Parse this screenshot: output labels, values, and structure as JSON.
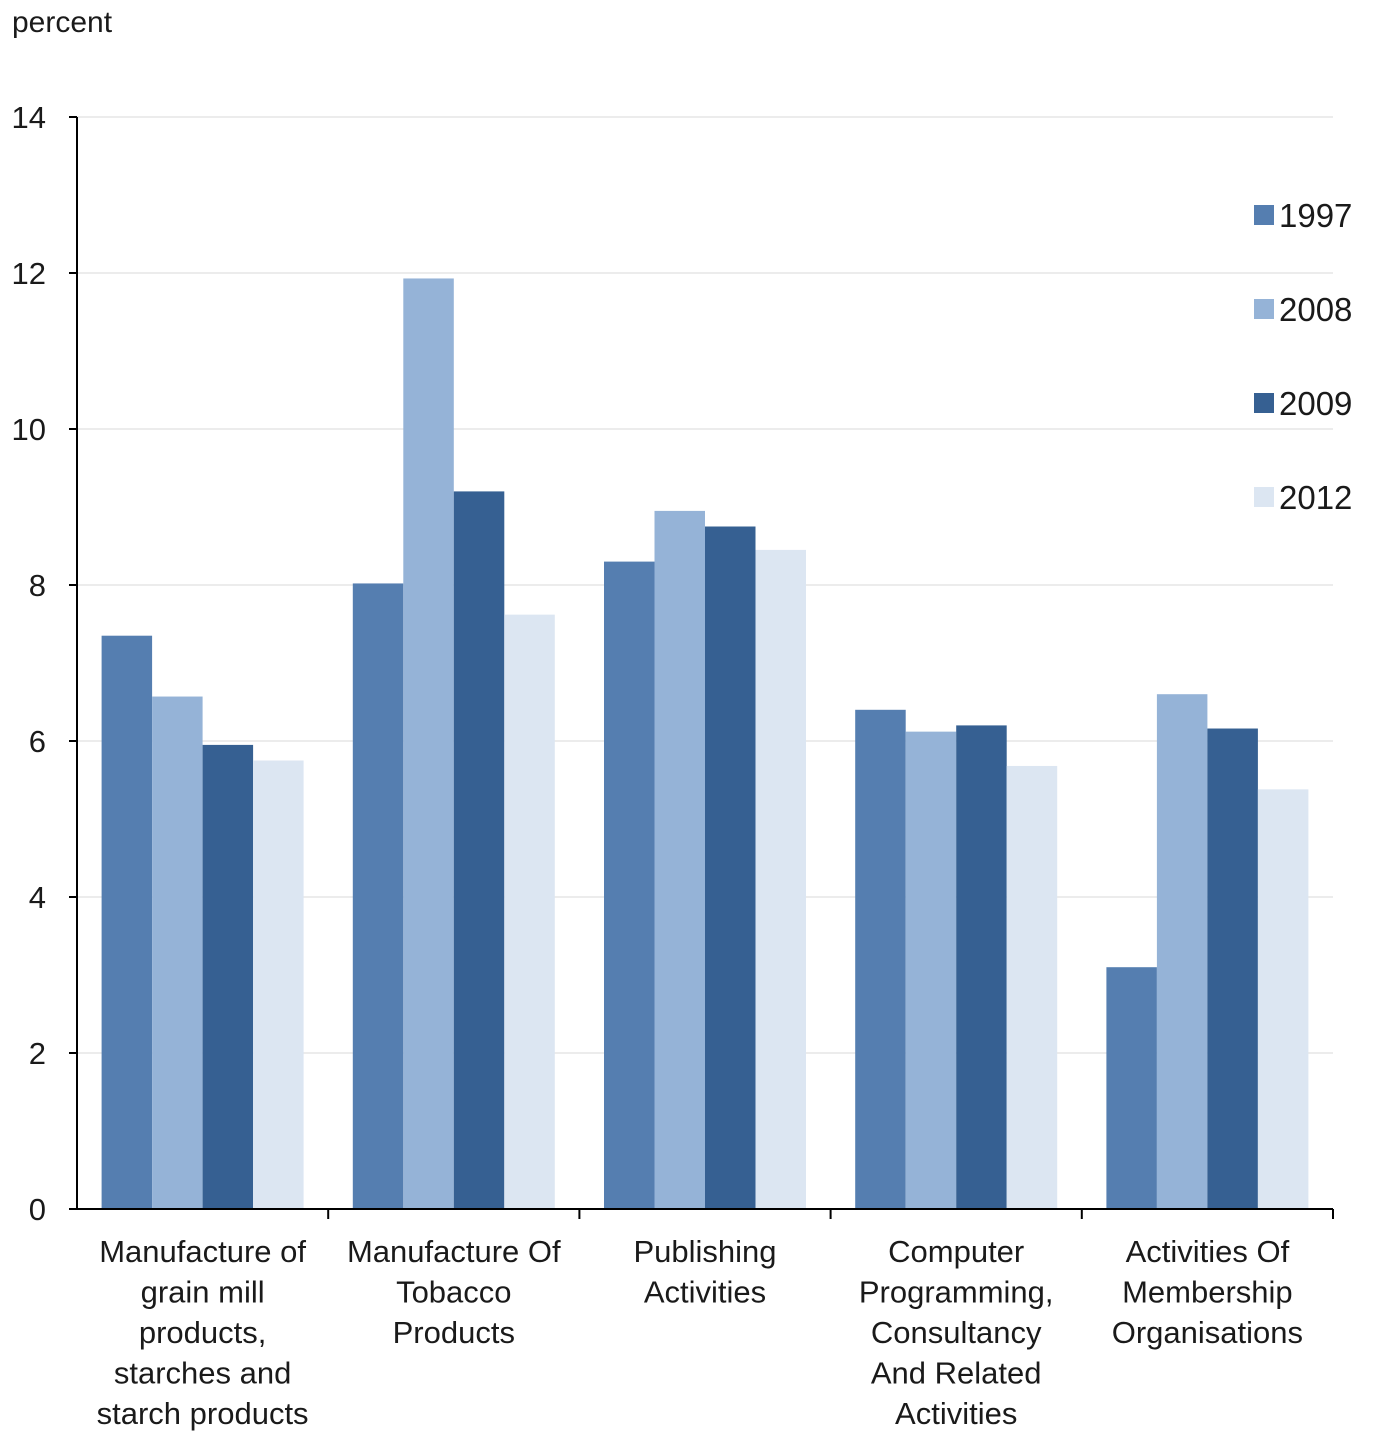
{
  "chart_data": {
    "type": "bar",
    "title": "",
    "xlabel": "",
    "ylabel": "percent",
    "ylim": [
      0,
      14
    ],
    "yticks": [
      "0",
      "2",
      "4",
      "6",
      "8",
      "10",
      "12",
      "14"
    ],
    "grid": true,
    "legend_position": "right",
    "categories": [
      [
        "Manufacture of",
        "grain mill",
        "products,",
        "starches and",
        "starch products"
      ],
      [
        "Manufacture Of",
        "Tobacco",
        "Products"
      ],
      [
        "Publishing",
        "Activities"
      ],
      [
        "Computer",
        "Programming,",
        "Consultancy",
        "And Related",
        "Activities"
      ],
      [
        "Activities Of",
        "Membership",
        "Organisations"
      ]
    ],
    "series": [
      {
        "name": "1997",
        "color": "#557EB0",
        "values": [
          7.35,
          8.02,
          8.3,
          6.4,
          3.1
        ]
      },
      {
        "name": "2008",
        "color": "#95B3D7",
        "values": [
          6.57,
          11.93,
          8.95,
          6.12,
          6.6
        ]
      },
      {
        "name": "2009",
        "color": "#366092",
        "values": [
          5.95,
          9.2,
          8.75,
          6.2,
          6.16
        ]
      },
      {
        "name": "2012",
        "color": "#DCE6F2",
        "values": [
          5.75,
          7.62,
          8.45,
          5.68,
          5.38
        ]
      }
    ]
  }
}
